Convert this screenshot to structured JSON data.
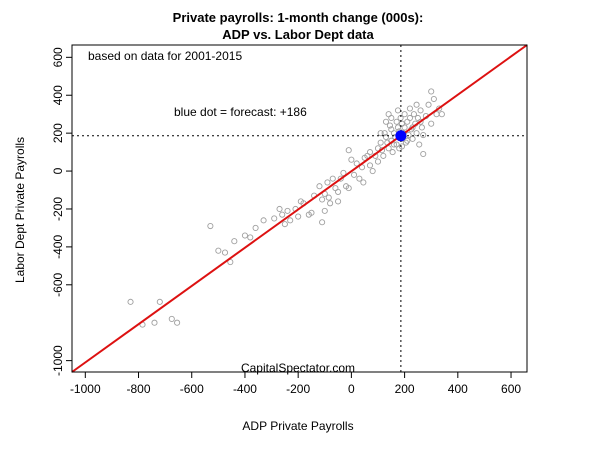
{
  "chart_data": {
    "type": "scatter",
    "title": "Private payrolls: 1-month change (000s):",
    "subtitle": "ADP vs. Labor Dept data",
    "xlabel": "ADP Private Payrolls",
    "ylabel": "Labor Dept Private Payrolls",
    "xlim": [
      -1050,
      660
    ],
    "ylim": [
      -1060,
      665
    ],
    "x_ticks": [
      -1000,
      -800,
      -600,
      -400,
      -200,
      0,
      200,
      400,
      600
    ],
    "y_ticks": [
      -1000,
      -600,
      -400,
      -200,
      0,
      200,
      400,
      600
    ],
    "annotations": {
      "note": "based on data for 2001-2015",
      "forecast": "blue dot = forecast: +186",
      "credit": "CapitalSpectator.com"
    },
    "grid": false,
    "colors": {
      "points": "#a0a0a0",
      "regression_line": "#dd1111",
      "forecast_point": "#0000ff",
      "reference_lines": "#000000"
    },
    "forecast_point": {
      "x": 186,
      "y": 186
    },
    "reference_lines": {
      "vertical_x": 186,
      "horizontal_y": 186
    },
    "regression_line": {
      "x": [
        -1050,
        660
      ],
      "y": [
        -1060,
        665
      ]
    },
    "points": [
      [
        -830,
        -690
      ],
      [
        -785,
        -810
      ],
      [
        -740,
        -800
      ],
      [
        -720,
        -690
      ],
      [
        -675,
        -780
      ],
      [
        -655,
        -800
      ],
      [
        -530,
        -290
      ],
      [
        -500,
        -420
      ],
      [
        -475,
        -430
      ],
      [
        -455,
        -480
      ],
      [
        -440,
        -370
      ],
      [
        -400,
        -340
      ],
      [
        -380,
        -350
      ],
      [
        -360,
        -300
      ],
      [
        -330,
        -260
      ],
      [
        -290,
        -250
      ],
      [
        -270,
        -200
      ],
      [
        -260,
        -230
      ],
      [
        -250,
        -280
      ],
      [
        -240,
        -210
      ],
      [
        -230,
        -260
      ],
      [
        -210,
        -200
      ],
      [
        -200,
        -240
      ],
      [
        -190,
        -160
      ],
      [
        -180,
        -170
      ],
      [
        -160,
        -230
      ],
      [
        -150,
        -220
      ],
      [
        -140,
        -130
      ],
      [
        -120,
        -80
      ],
      [
        -110,
        -150
      ],
      [
        -110,
        -270
      ],
      [
        -100,
        -120
      ],
      [
        -100,
        -210
      ],
      [
        -90,
        -60
      ],
      [
        -85,
        -140
      ],
      [
        -80,
        -170
      ],
      [
        -70,
        -40
      ],
      [
        -60,
        -90
      ],
      [
        -50,
        -160
      ],
      [
        -50,
        -110
      ],
      [
        -40,
        -40
      ],
      [
        -30,
        -10
      ],
      [
        -20,
        -80
      ],
      [
        -10,
        -90
      ],
      [
        -10,
        110
      ],
      [
        0,
        60
      ],
      [
        10,
        -20
      ],
      [
        20,
        40
      ],
      [
        30,
        -40
      ],
      [
        40,
        20
      ],
      [
        45,
        -60
      ],
      [
        50,
        70
      ],
      [
        60,
        80
      ],
      [
        70,
        30
      ],
      [
        70,
        100
      ],
      [
        80,
        0
      ],
      [
        90,
        80
      ],
      [
        100,
        120
      ],
      [
        100,
        50
      ],
      [
        110,
        150
      ],
      [
        115,
        110
      ],
      [
        120,
        80
      ],
      [
        125,
        200
      ],
      [
        130,
        180
      ],
      [
        135,
        150
      ],
      [
        140,
        120
      ],
      [
        145,
        240
      ],
      [
        150,
        220
      ],
      [
        150,
        160
      ],
      [
        155,
        100
      ],
      [
        160,
        200
      ],
      [
        165,
        180
      ],
      [
        170,
        260
      ],
      [
        170,
        140
      ],
      [
        175,
        230
      ],
      [
        180,
        210
      ],
      [
        180,
        120
      ],
      [
        185,
        280
      ],
      [
        190,
        250
      ],
      [
        190,
        170
      ],
      [
        195,
        200
      ],
      [
        200,
        300
      ],
      [
        200,
        230
      ],
      [
        205,
        150
      ],
      [
        210,
        260
      ],
      [
        215,
        190
      ],
      [
        220,
        330
      ],
      [
        220,
        280
      ],
      [
        225,
        220
      ],
      [
        230,
        170
      ],
      [
        235,
        300
      ],
      [
        240,
        250
      ],
      [
        245,
        200
      ],
      [
        250,
        280
      ],
      [
        255,
        140
      ],
      [
        260,
        320
      ],
      [
        265,
        230
      ],
      [
        270,
        90
      ],
      [
        270,
        190
      ],
      [
        280,
        290
      ],
      [
        290,
        350
      ],
      [
        300,
        420
      ],
      [
        300,
        250
      ],
      [
        310,
        380
      ],
      [
        320,
        300
      ],
      [
        330,
        330
      ],
      [
        340,
        300
      ],
      [
        110,
        200
      ],
      [
        130,
        260
      ],
      [
        140,
        300
      ],
      [
        150,
        280
      ],
      [
        160,
        140
      ],
      [
        175,
        320
      ],
      [
        190,
        130
      ],
      [
        210,
        160
      ],
      [
        230,
        230
      ],
      [
        245,
        350
      ],
      [
        260,
        260
      ]
    ]
  }
}
